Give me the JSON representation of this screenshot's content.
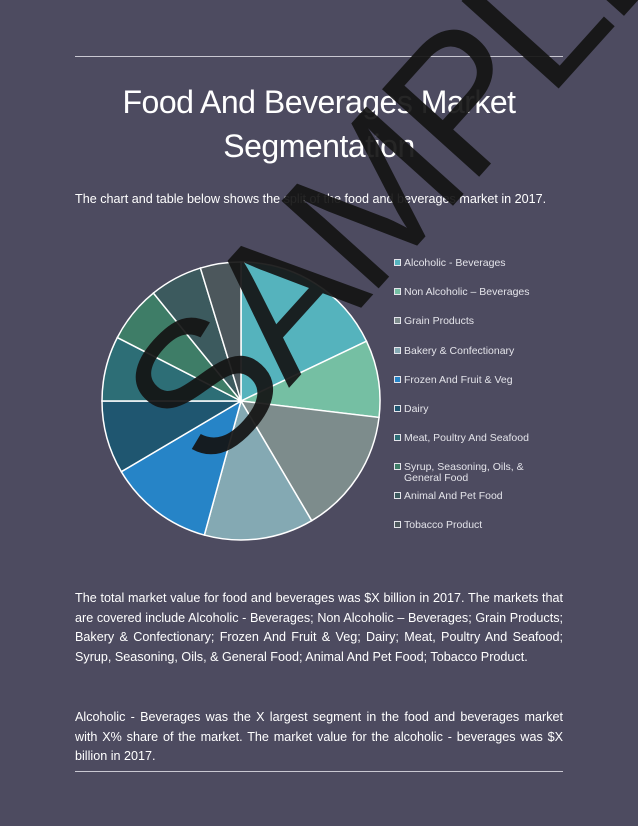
{
  "page": {
    "title_line1": "Food And Beverages Market",
    "title_line2": "Segmentation",
    "intro": "The chart and table below shows the split of the food and beverages market in 2017.",
    "body_paragraph_1": "The total market value for food and beverages was $X billion in 2017. The markets that are covered include Alcoholic - Beverages; Non Alcoholic – Beverages; Grain Products; Bakery & Confectionary; Frozen And Fruit & Veg; Dairy; Meat, Poultry And Seafood; Syrup, Seasoning, Oils, & General Food; Animal And Pet Food; Tobacco Product.",
    "body_paragraph_2": "Alcoholic - Beverages was the X largest segment in the food and beverages market with X% share of the market. The market value for the alcoholic - beverages was $X billion in 2017.",
    "watermark": "SAMPLE"
  },
  "chart_data": {
    "type": "pie",
    "start_angle_deg": 0,
    "direction": "clockwise",
    "categories": [
      "Alcoholic - Beverages",
      "Non Alcoholic – Beverages",
      "Grain Products",
      "Bakery & Confectionary",
      "Frozen And Fruit & Veg",
      "Dairy",
      "Meat, Poultry And Seafood",
      "Syrup, Seasoning, Oils, & General Food",
      "Animal And Pet Food",
      "Tobacco Product"
    ],
    "values": [
      19,
      9.5,
      15.5,
      13.5,
      13,
      9,
      8,
      7,
      6.5,
      5
    ],
    "colors": [
      "#55b3bd",
      "#75bfa3",
      "#7d8c8c",
      "#84a9b3",
      "#2684c7",
      "#1f5670",
      "#2d6e76",
      "#3e7d67",
      "#3c5a5e",
      "#4c575c"
    ],
    "legend_position": "right",
    "legend_labels": [
      [
        "Alcoholic - Beverages"
      ],
      [
        "Non Alcoholic – Beverages"
      ],
      [
        "Grain Products"
      ],
      [
        "Bakery & Confectionary"
      ],
      [
        "Frozen And Fruit & Veg"
      ],
      [
        "Dairy"
      ],
      [
        "Meat, Poultry And Seafood"
      ],
      [
        "Syrup, Seasoning, Oils, &",
        "General Food"
      ],
      [
        "Animal And Pet Food"
      ],
      [
        "Tobacco Product"
      ]
    ]
  }
}
